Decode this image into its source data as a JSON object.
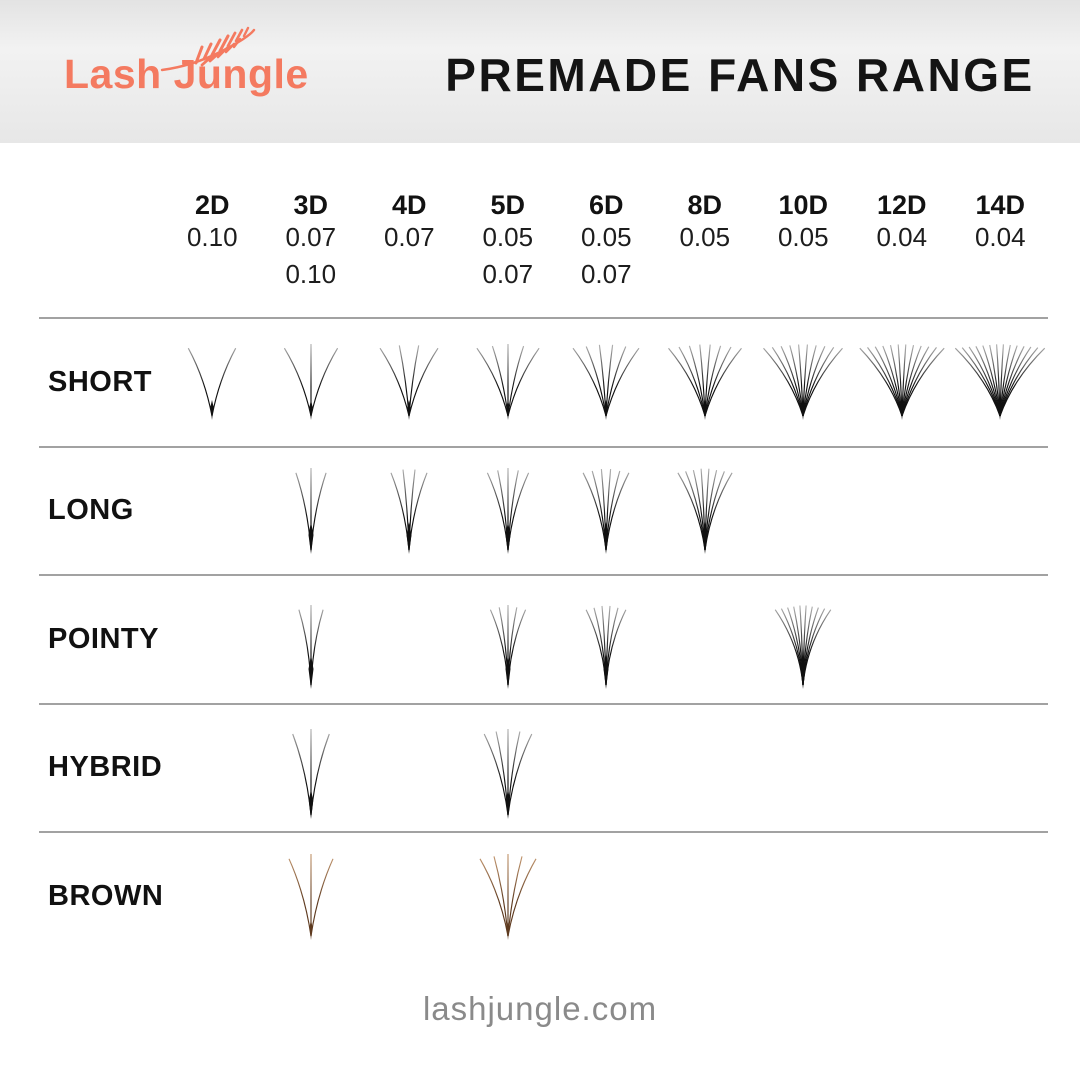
{
  "header": {
    "logo_text": "Lash Jungle",
    "title": "PREMADE FANS RANGE"
  },
  "columns": [
    {
      "label": "2D",
      "thickness": [
        "0.10"
      ],
      "lash_count": 2
    },
    {
      "label": "3D",
      "thickness": [
        "0.07",
        "0.10"
      ],
      "lash_count": 3
    },
    {
      "label": "4D",
      "thickness": [
        "0.07"
      ],
      "lash_count": 4
    },
    {
      "label": "5D",
      "thickness": [
        "0.05",
        "0.07"
      ],
      "lash_count": 5
    },
    {
      "label": "6D",
      "thickness": [
        "0.05",
        "0.07"
      ],
      "lash_count": 6
    },
    {
      "label": "8D",
      "thickness": [
        "0.05"
      ],
      "lash_count": 8
    },
    {
      "label": "10D",
      "thickness": [
        "0.05"
      ],
      "lash_count": 10
    },
    {
      "label": "12D",
      "thickness": [
        "0.04"
      ],
      "lash_count": 12
    },
    {
      "label": "14D",
      "thickness": [
        "0.04"
      ],
      "lash_count": 14
    }
  ],
  "rows": [
    {
      "label": "SHORT",
      "style": "short",
      "color": "black",
      "available": [
        "2D",
        "3D",
        "4D",
        "5D",
        "6D",
        "8D",
        "10D",
        "12D",
        "14D"
      ]
    },
    {
      "label": "LONG",
      "style": "long",
      "color": "black",
      "available": [
        "3D",
        "4D",
        "5D",
        "6D",
        "8D"
      ]
    },
    {
      "label": "POINTY",
      "style": "pointy",
      "color": "black",
      "available": [
        "3D",
        "5D",
        "6D",
        "10D"
      ]
    },
    {
      "label": "HYBRID",
      "style": "hybrid",
      "color": "black",
      "available": [
        "3D",
        "5D"
      ]
    },
    {
      "label": "BROWN",
      "style": "brown",
      "color": "brown",
      "available": [
        "3D",
        "5D"
      ]
    }
  ],
  "footer": {
    "website": "lashjungle.com"
  },
  "colors": {
    "brand_coral": "#f47a60",
    "title_text": "#141414",
    "lash_black_dark": "#101010",
    "lash_black_light": "#b5b5b5",
    "lash_brown_dark": "#5e3a1f",
    "lash_brown_light": "#c79b73",
    "divider": "#a2a2a2",
    "footer_text": "#8a8a8a"
  },
  "chart_data": {
    "type": "table",
    "title": "PREMADE FANS RANGE",
    "columns": [
      "2D",
      "3D",
      "4D",
      "5D",
      "6D",
      "8D",
      "10D",
      "12D",
      "14D"
    ],
    "column_thickness": {
      "2D": [
        "0.10"
      ],
      "3D": [
        "0.07",
        "0.10"
      ],
      "4D": [
        "0.07"
      ],
      "5D": [
        "0.05",
        "0.07"
      ],
      "6D": [
        "0.05",
        "0.07"
      ],
      "8D": [
        "0.05"
      ],
      "10D": [
        "0.05"
      ],
      "12D": [
        "0.04"
      ],
      "14D": [
        "0.04"
      ]
    },
    "rows": [
      "SHORT",
      "LONG",
      "POINTY",
      "HYBRID",
      "BROWN"
    ],
    "availability": {
      "SHORT": [
        "2D",
        "3D",
        "4D",
        "5D",
        "6D",
        "8D",
        "10D",
        "12D",
        "14D"
      ],
      "LONG": [
        "3D",
        "4D",
        "5D",
        "6D",
        "8D"
      ],
      "POINTY": [
        "3D",
        "5D",
        "6D",
        "10D"
      ],
      "HYBRID": [
        "3D",
        "5D"
      ],
      "BROWN": [
        "3D",
        "5D"
      ]
    },
    "footer": "lashjungle.com"
  }
}
